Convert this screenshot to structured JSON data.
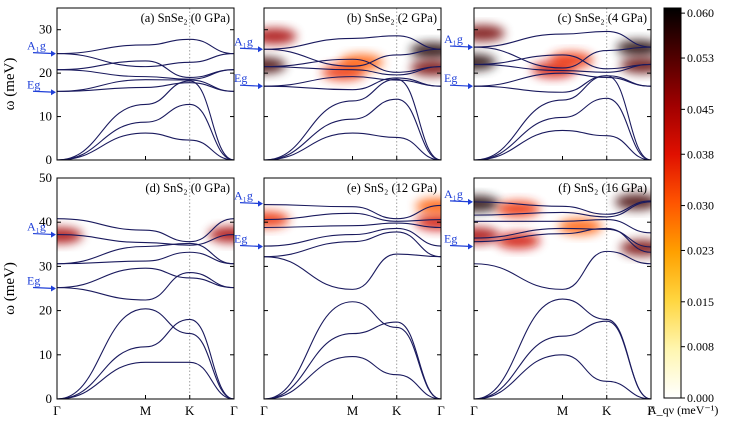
{
  "chart_data": {
    "type": "line",
    "description_kind": "phonon band structure with phonon spectral function colormap",
    "y_axis_title": "ω (meV)",
    "x_tick_labels": [
      "Γ",
      "M",
      "K",
      "Γ"
    ],
    "colorbar": {
      "label": "A_qν (meV⁻¹)",
      "range": [
        0.0,
        0.0608
      ],
      "tick_values": [
        0.0,
        0.008,
        0.015,
        0.023,
        0.03,
        0.038,
        0.045,
        0.053,
        0.06
      ],
      "tick_labels": [
        "0.000",
        "0.008",
        "0.015",
        "0.023",
        "0.030",
        "0.038",
        "0.045",
        "0.053",
        "0.060"
      ],
      "colors": [
        "#ffffff",
        "#fff6b0",
        "#ffd640",
        "#ffa000",
        "#ff5500",
        "#e01000",
        "#a00000",
        "#500000",
        "#000000"
      ]
    },
    "rows": [
      {
        "y_range": [
          0,
          35
        ],
        "y_ticks": [
          0,
          10,
          20,
          30
        ]
      },
      {
        "y_range": [
          0,
          50
        ],
        "y_ticks": [
          0,
          10,
          20,
          30,
          40,
          50
        ]
      }
    ],
    "panels": [
      {
        "title": "(a) SnSe₂ (0 GPa)",
        "row": 0,
        "col": 0,
        "mode_labels": [
          {
            "text": "A₁g",
            "value": 24.5
          },
          {
            "text": "Eg",
            "value": 15.6
          }
        ],
        "x": [
          0.0,
          0.5,
          0.75,
          1.0
        ],
        "bands": [
          [
            0.0,
            6.2,
            4.6,
            0.0
          ],
          [
            0.0,
            8.7,
            12.8,
            0.0
          ],
          [
            0.0,
            12.8,
            18.2,
            0.0
          ],
          [
            15.8,
            16.7,
            17.8,
            15.8
          ],
          [
            15.8,
            18.5,
            18.4,
            15.8
          ],
          [
            20.8,
            19.2,
            18.6,
            20.8
          ],
          [
            20.8,
            22.8,
            19.0,
            20.8
          ],
          [
            24.5,
            21.5,
            22.5,
            24.5
          ],
          [
            24.5,
            26.5,
            27.8,
            24.5
          ]
        ],
        "heat": []
      },
      {
        "title": "(b) SnSe₂ (2 GPa)",
        "row": 0,
        "col": 1,
        "mode_labels": [
          {
            "text": "A₁g",
            "value": 25.5
          },
          {
            "text": "Eg",
            "value": 17.0
          }
        ],
        "x": [
          0.0,
          0.5,
          0.75,
          1.0
        ],
        "bands": [
          [
            0.0,
            6.2,
            5.2,
            0.0
          ],
          [
            0.0,
            9.4,
            14.0,
            0.0
          ],
          [
            0.0,
            13.6,
            18.6,
            0.0
          ],
          [
            17.0,
            16.2,
            18.9,
            17.0
          ],
          [
            17.0,
            19.2,
            18.4,
            17.0
          ],
          [
            21.5,
            20.8,
            19.6,
            21.5
          ],
          [
            21.5,
            23.2,
            20.2,
            21.5
          ],
          [
            25.5,
            21.6,
            24.2,
            25.5
          ],
          [
            25.5,
            28.0,
            28.6,
            25.5
          ]
        ],
        "heat": [
          {
            "x": 0.0,
            "value": 21.8,
            "intensity": 0.055
          },
          {
            "x": 0.06,
            "value": 28.5,
            "intensity": 0.045
          },
          {
            "x": 0.95,
            "value": 25.2,
            "intensity": 0.058
          },
          {
            "x": 0.95,
            "value": 21.2,
            "intensity": 0.05
          },
          {
            "x": 0.45,
            "value": 20.2,
            "intensity": 0.035
          },
          {
            "x": 0.55,
            "value": 22.5,
            "intensity": 0.03
          }
        ]
      },
      {
        "title": "(c) SnSe₂ (4 GPa)",
        "row": 0,
        "col": 2,
        "mode_labels": [
          {
            "text": "A₁g",
            "value": 26.0
          },
          {
            "text": "Eg",
            "value": 17.0
          }
        ],
        "x": [
          0.0,
          0.5,
          0.75,
          1.0
        ],
        "bands": [
          [
            0.0,
            6.8,
            5.6,
            0.0
          ],
          [
            0.0,
            9.8,
            14.2,
            0.0
          ],
          [
            0.0,
            13.8,
            19.4,
            0.0
          ],
          [
            17.0,
            15.6,
            19.4,
            17.0
          ],
          [
            17.0,
            20.0,
            19.0,
            17.0
          ],
          [
            22.0,
            20.6,
            20.2,
            22.0
          ],
          [
            22.0,
            24.2,
            21.0,
            22.0
          ],
          [
            26.0,
            21.2,
            25.2,
            26.0
          ],
          [
            26.0,
            29.0,
            29.6,
            26.0
          ]
        ],
        "heat": [
          {
            "x": 0.0,
            "value": 22.5,
            "intensity": 0.058
          },
          {
            "x": 0.05,
            "value": 29.2,
            "intensity": 0.05
          },
          {
            "x": 0.93,
            "value": 25.8,
            "intensity": 0.058
          },
          {
            "x": 0.95,
            "value": 21.8,
            "intensity": 0.052
          },
          {
            "x": 0.45,
            "value": 20.8,
            "intensity": 0.04
          },
          {
            "x": 0.55,
            "value": 23.0,
            "intensity": 0.035
          }
        ]
      },
      {
        "title": "(d) SnS₂ (0 GPa)",
        "row": 1,
        "col": 0,
        "mode_labels": [
          {
            "text": "A₁g",
            "value": 37.2
          },
          {
            "text": "Eg",
            "value": 25.0
          }
        ],
        "x": [
          0.0,
          0.5,
          0.75,
          1.0
        ],
        "bands": [
          [
            0.0,
            8.3,
            8.3,
            0.0
          ],
          [
            0.0,
            11.8,
            18.0,
            0.0
          ],
          [
            0.0,
            20.4,
            14.8,
            0.0
          ],
          [
            25.2,
            22.4,
            28.6,
            25.2
          ],
          [
            25.2,
            29.6,
            27.4,
            25.2
          ],
          [
            30.6,
            31.2,
            33.2,
            30.6
          ],
          [
            30.6,
            34.5,
            35.2,
            30.6
          ],
          [
            37.2,
            35.4,
            34.8,
            37.2
          ],
          [
            40.8,
            38.2,
            35.6,
            40.8
          ]
        ],
        "heat": [
          {
            "x": 0.02,
            "value": 37.0,
            "intensity": 0.045
          },
          {
            "x": 0.98,
            "value": 37.2,
            "intensity": 0.045
          }
        ]
      },
      {
        "title": "(e) SnS₂ (12 GPa)",
        "row": 1,
        "col": 1,
        "mode_labels": [
          {
            "text": "A₁g",
            "value": 44.2
          },
          {
            "text": "Eg",
            "value": 34.5
          }
        ],
        "x": [
          0.0,
          0.5,
          0.75,
          1.0
        ],
        "bands": [
          [
            0.0,
            9.6,
            5.5,
            0.0
          ],
          [
            0.0,
            14.8,
            17.4,
            0.0
          ],
          [
            0.0,
            22.0,
            16.2,
            0.0
          ],
          [
            32.2,
            24.8,
            32.8,
            32.2
          ],
          [
            32.2,
            35.6,
            37.8,
            32.2
          ],
          [
            34.6,
            37.2,
            38.6,
            34.6
          ],
          [
            38.8,
            39.2,
            39.8,
            38.8
          ],
          [
            40.6,
            42.0,
            40.2,
            40.6
          ],
          [
            44.0,
            43.5,
            40.8,
            43.8
          ]
        ],
        "heat": [
          {
            "x": 0.02,
            "value": 40.6,
            "intensity": 0.035
          },
          {
            "x": 0.98,
            "value": 40.0,
            "intensity": 0.04
          },
          {
            "x": 0.98,
            "value": 43.6,
            "intensity": 0.03
          }
        ]
      },
      {
        "title": "(f) SnS₂ (16 GPa)",
        "row": 1,
        "col": 2,
        "mode_labels": [
          {
            "text": "A₁g",
            "value": 44.6
          },
          {
            "text": "Eg",
            "value": 34.5
          }
        ],
        "x": [
          0.0,
          0.5,
          0.75,
          1.0
        ],
        "bands": [
          [
            0.0,
            10.0,
            4.0,
            0.0
          ],
          [
            0.0,
            14.2,
            17.6,
            0.0
          ],
          [
            0.0,
            22.6,
            18.0,
            0.0
          ],
          [
            30.6,
            24.8,
            33.4,
            30.6
          ],
          [
            35.6,
            37.4,
            38.6,
            33.2
          ],
          [
            36.4,
            38.6,
            38.4,
            34.4
          ],
          [
            40.2,
            40.2,
            40.6,
            37.6
          ],
          [
            41.6,
            42.2,
            41.2,
            44.6
          ],
          [
            44.6,
            43.6,
            41.8,
            44.8
          ]
        ],
        "heat": [
          {
            "x": 0.02,
            "value": 44.2,
            "intensity": 0.058
          },
          {
            "x": 0.02,
            "value": 37.0,
            "intensity": 0.045
          },
          {
            "x": 0.25,
            "value": 35.8,
            "intensity": 0.04
          },
          {
            "x": 0.25,
            "value": 43.0,
            "intensity": 0.035
          },
          {
            "x": 0.92,
            "value": 44.6,
            "intensity": 0.055
          },
          {
            "x": 0.95,
            "value": 34.2,
            "intensity": 0.05
          },
          {
            "x": 0.6,
            "value": 39.0,
            "intensity": 0.03
          }
        ]
      }
    ]
  }
}
